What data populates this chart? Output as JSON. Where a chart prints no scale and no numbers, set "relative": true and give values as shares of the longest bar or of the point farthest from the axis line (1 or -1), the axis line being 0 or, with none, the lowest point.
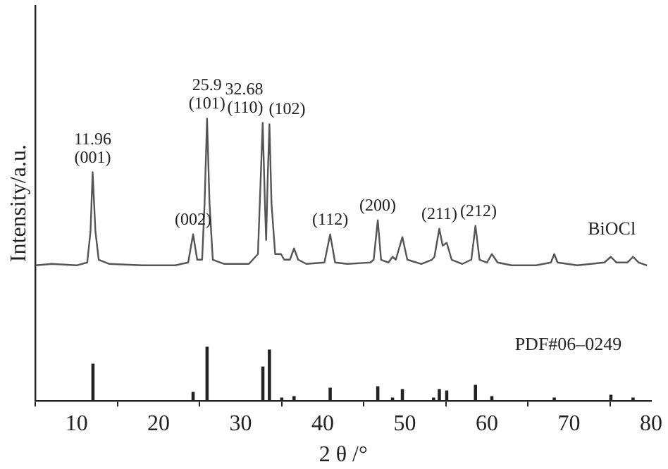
{
  "chart_data": {
    "type": "line",
    "xlabel": "2 θ /°",
    "ylabel": "Intensity/a.u.",
    "relative": true,
    "grid": false,
    "legend": false,
    "marker": "none",
    "line_style": "solid",
    "xlim": [
      5,
      80
    ],
    "xticks": [
      10,
      20,
      30,
      40,
      50,
      60,
      70,
      80
    ],
    "series": [
      {
        "name": "BiOCl",
        "color": "#555555",
        "x": [
          5,
          7,
          10,
          11.3,
          11.7,
          11.96,
          12.3,
          12.7,
          14,
          18,
          22,
          23.6,
          24.2,
          24.7,
          25.3,
          25.6,
          25.9,
          26.2,
          26.6,
          28,
          31,
          32.1,
          32.45,
          32.68,
          32.95,
          33.1,
          33.3,
          33.5,
          33.75,
          34.2,
          34.9,
          35.3,
          36,
          36.5,
          37,
          38,
          40.2,
          40.9,
          41.5,
          43,
          45.8,
          46.2,
          46.7,
          47.1,
          48,
          48.5,
          48.9,
          49.7,
          50.3,
          52,
          53.3,
          53.6,
          54.2,
          54.6,
          55.1,
          55.7,
          57,
          58.1,
          58.6,
          59.1,
          60,
          60.6,
          61.3,
          63,
          66,
          67.8,
          68.2,
          68.6,
          71,
          74.3,
          75.1,
          75.8,
          77.1,
          77.8,
          78.5,
          79.5
        ],
        "values": [
          0.48,
          0.485,
          0.48,
          0.49,
          0.6,
          0.81,
          0.6,
          0.5,
          0.485,
          0.48,
          0.48,
          0.49,
          0.59,
          0.5,
          0.5,
          0.7,
          1,
          0.7,
          0.5,
          0.485,
          0.485,
          0.52,
          0.8,
          0.985,
          0.7,
          0.57,
          0.8,
          0.98,
          0.7,
          0.52,
          0.52,
          0.5,
          0.5,
          0.54,
          0.5,
          0.485,
          0.49,
          0.59,
          0.49,
          0.485,
          0.49,
          0.5,
          0.64,
          0.5,
          0.49,
          0.51,
          0.5,
          0.58,
          0.5,
          0.485,
          0.5,
          0.51,
          0.61,
          0.55,
          0.56,
          0.5,
          0.485,
          0.5,
          0.62,
          0.5,
          0.49,
          0.52,
          0.49,
          0.48,
          0.48,
          0.49,
          0.52,
          0.49,
          0.48,
          0.49,
          0.51,
          0.49,
          0.49,
          0.51,
          0.49,
          0.48
        ]
      },
      {
        "type": "bar",
        "name": "PDF#06–0249",
        "color": "#222222",
        "x": [
          12,
          24.2,
          25.9,
          32.7,
          33.5,
          35,
          36.5,
          40.9,
          46.7,
          48.5,
          49.7,
          53.5,
          54.2,
          55.1,
          58.6,
          60.6,
          68.2,
          75.1,
          77.8
        ],
        "values": [
          0.13,
          0.03,
          0.19,
          0.12,
          0.18,
          0.01,
          0.015,
          0.045,
          0.05,
          0.01,
          0.04,
          0.01,
          0.04,
          0.035,
          0.055,
          0.015,
          0.01,
          0.02,
          0.01
        ]
      }
    ],
    "annotations": [
      {
        "text": "(001)",
        "x": 11.96,
        "y": 0.81
      },
      {
        "text": "11.96",
        "x": 11.96,
        "y": 0.81
      },
      {
        "text": "(101)",
        "x": 25.9,
        "y": 1
      },
      {
        "text": "25.9",
        "x": 25.9,
        "y": 1
      },
      {
        "text": "(110)",
        "x": 32.68,
        "y": 0.985
      },
      {
        "text": "32.68",
        "x": 32.68,
        "y": 0.985
      },
      {
        "text": "(102)",
        "x": 33.5,
        "y": 0.98
      },
      {
        "text": "(002)",
        "x": 24.2,
        "y": 0.59
      },
      {
        "text": "(112)",
        "x": 40.9,
        "y": 0.59
      },
      {
        "text": "(200)",
        "x": 46.7,
        "y": 0.64
      },
      {
        "text": "(211)",
        "x": 54.2,
        "y": 0.61
      },
      {
        "text": "(212)",
        "x": 58.6,
        "y": 0.62
      }
    ]
  }
}
